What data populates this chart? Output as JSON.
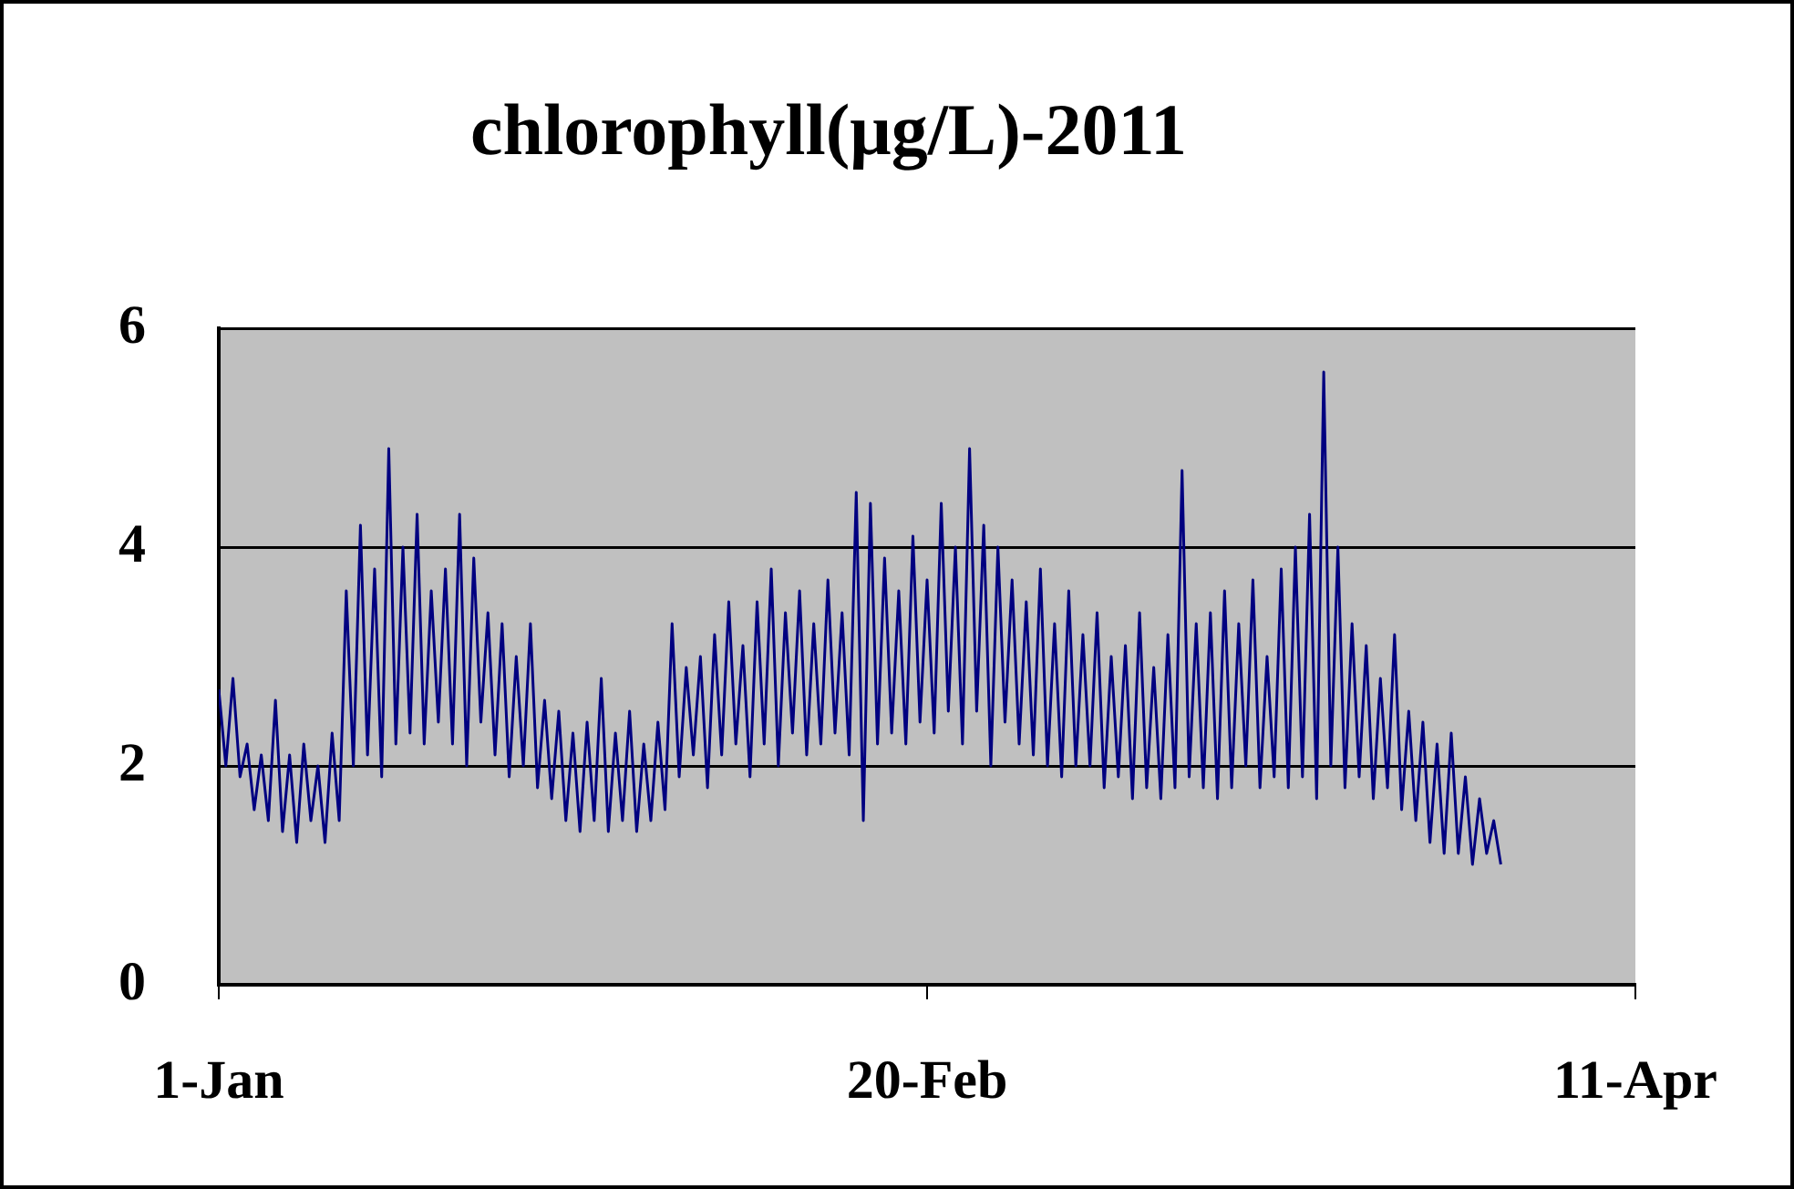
{
  "chart_data": {
    "type": "line",
    "title": "chlorophyll(μg/L)-2011",
    "x": [
      "2011-01-01T00:00",
      "2011-01-01T12:00",
      "2011-01-02T00:00",
      "2011-01-02T12:00",
      "2011-01-03T00:00",
      "2011-01-03T12:00",
      "2011-01-04T00:00",
      "2011-01-04T12:00",
      "2011-01-05T00:00",
      "2011-01-05T12:00",
      "2011-01-06T00:00",
      "2011-01-06T12:00",
      "2011-01-07T00:00",
      "2011-01-07T12:00",
      "2011-01-08T00:00",
      "2011-01-08T12:00",
      "2011-01-09T00:00",
      "2011-01-09T12:00",
      "2011-01-10T00:00",
      "2011-01-10T12:00",
      "2011-01-11T00:00",
      "2011-01-11T12:00",
      "2011-01-12T00:00",
      "2011-01-12T12:00",
      "2011-01-13T00:00",
      "2011-01-13T12:00",
      "2011-01-14T00:00",
      "2011-01-14T12:00",
      "2011-01-15T00:00",
      "2011-01-15T12:00",
      "2011-01-16T00:00",
      "2011-01-16T12:00",
      "2011-01-17T00:00",
      "2011-01-17T12:00",
      "2011-01-18T00:00",
      "2011-01-18T12:00",
      "2011-01-19T00:00",
      "2011-01-19T12:00",
      "2011-01-20T00:00",
      "2011-01-20T12:00",
      "2011-01-21T00:00",
      "2011-01-21T12:00",
      "2011-01-22T00:00",
      "2011-01-22T12:00",
      "2011-01-23T00:00",
      "2011-01-23T12:00",
      "2011-01-24T00:00",
      "2011-01-24T12:00",
      "2011-01-25T00:00",
      "2011-01-25T12:00",
      "2011-01-26T00:00",
      "2011-01-26T12:00",
      "2011-01-27T00:00",
      "2011-01-27T12:00",
      "2011-01-28T00:00",
      "2011-01-28T12:00",
      "2011-01-29T00:00",
      "2011-01-29T12:00",
      "2011-01-30T00:00",
      "2011-01-30T12:00",
      "2011-01-31T00:00",
      "2011-01-31T12:00",
      "2011-02-01T00:00",
      "2011-02-01T12:00",
      "2011-02-02T00:00",
      "2011-02-02T12:00",
      "2011-02-03T00:00",
      "2011-02-03T12:00",
      "2011-02-04T00:00",
      "2011-02-04T12:00",
      "2011-02-05T00:00",
      "2011-02-05T12:00",
      "2011-02-06T00:00",
      "2011-02-06T12:00",
      "2011-02-07T00:00",
      "2011-02-07T12:00",
      "2011-02-08T00:00",
      "2011-02-08T12:00",
      "2011-02-09T00:00",
      "2011-02-09T12:00",
      "2011-02-10T00:00",
      "2011-02-10T12:00",
      "2011-02-11T00:00",
      "2011-02-11T12:00",
      "2011-02-12T00:00",
      "2011-02-12T12:00",
      "2011-02-13T00:00",
      "2011-02-13T12:00",
      "2011-02-14T00:00",
      "2011-02-14T12:00",
      "2011-02-15T00:00",
      "2011-02-15T12:00",
      "2011-02-16T00:00",
      "2011-02-16T12:00",
      "2011-02-17T00:00",
      "2011-02-17T12:00",
      "2011-02-18T00:00",
      "2011-02-18T12:00",
      "2011-02-19T00:00",
      "2011-02-19T12:00",
      "2011-02-20T00:00",
      "2011-02-20T12:00",
      "2011-02-21T00:00",
      "2011-02-21T12:00",
      "2011-02-22T00:00",
      "2011-02-22T12:00",
      "2011-02-23T00:00",
      "2011-02-23T12:00",
      "2011-02-24T00:00",
      "2011-02-24T12:00",
      "2011-02-25T00:00",
      "2011-02-25T12:00",
      "2011-02-26T00:00",
      "2011-02-26T12:00",
      "2011-02-27T00:00",
      "2011-02-27T12:00",
      "2011-02-28T00:00",
      "2011-02-28T12:00",
      "2011-03-01T00:00",
      "2011-03-01T12:00",
      "2011-03-02T00:00",
      "2011-03-02T12:00",
      "2011-03-03T00:00",
      "2011-03-03T12:00",
      "2011-03-04T00:00",
      "2011-03-04T12:00",
      "2011-03-05T00:00",
      "2011-03-05T12:00",
      "2011-03-06T00:00",
      "2011-03-06T12:00",
      "2011-03-07T00:00",
      "2011-03-07T12:00",
      "2011-03-08T00:00",
      "2011-03-08T12:00",
      "2011-03-09T00:00",
      "2011-03-09T12:00",
      "2011-03-10T00:00",
      "2011-03-10T12:00",
      "2011-03-11T00:00",
      "2011-03-11T12:00",
      "2011-03-12T00:00",
      "2011-03-12T12:00",
      "2011-03-13T00:00",
      "2011-03-13T12:00",
      "2011-03-14T00:00",
      "2011-03-14T12:00",
      "2011-03-15T00:00",
      "2011-03-15T12:00",
      "2011-03-16T00:00",
      "2011-03-16T12:00",
      "2011-03-17T00:00",
      "2011-03-17T12:00",
      "2011-03-18T00:00",
      "2011-03-18T12:00",
      "2011-03-19T00:00",
      "2011-03-19T12:00",
      "2011-03-20T00:00",
      "2011-03-20T12:00",
      "2011-03-21T00:00",
      "2011-03-21T12:00",
      "2011-03-22T00:00",
      "2011-03-22T12:00",
      "2011-03-23T00:00",
      "2011-03-23T12:00",
      "2011-03-24T00:00",
      "2011-03-24T12:00",
      "2011-03-25T00:00",
      "2011-03-25T12:00",
      "2011-03-26T00:00",
      "2011-03-26T12:00",
      "2011-03-27T00:00",
      "2011-03-27T12:00",
      "2011-03-28T00:00",
      "2011-03-28T12:00",
      "2011-03-29T00:00",
      "2011-03-29T12:00",
      "2011-03-30T00:00",
      "2011-03-30T12:00",
      "2011-03-31T00:00",
      "2011-03-31T12:00",
      "2011-04-01T00:00",
      "2011-04-01T12:00"
    ],
    "series": [
      {
        "color": "#000080",
        "values": [
          2.7,
          2.0,
          2.8,
          1.9,
          2.2,
          1.6,
          2.1,
          1.5,
          2.6,
          1.4,
          2.1,
          1.3,
          2.2,
          1.5,
          2.0,
          1.3,
          2.3,
          1.5,
          3.6,
          2.0,
          4.2,
          2.1,
          3.8,
          1.9,
          4.9,
          2.2,
          4.0,
          2.3,
          4.3,
          2.2,
          3.6,
          2.4,
          3.8,
          2.2,
          4.3,
          2.0,
          3.9,
          2.4,
          3.4,
          2.1,
          3.3,
          1.9,
          3.0,
          2.0,
          3.3,
          1.8,
          2.6,
          1.7,
          2.5,
          1.5,
          2.3,
          1.4,
          2.4,
          1.5,
          2.8,
          1.4,
          2.3,
          1.5,
          2.5,
          1.4,
          2.2,
          1.5,
          2.4,
          1.6,
          3.3,
          1.9,
          2.9,
          2.1,
          3.0,
          1.8,
          3.2,
          2.1,
          3.5,
          2.2,
          3.1,
          1.9,
          3.5,
          2.2,
          3.8,
          2.0,
          3.4,
          2.3,
          3.6,
          2.1,
          3.3,
          2.2,
          3.7,
          2.3,
          3.4,
          2.1,
          4.5,
          1.5,
          4.4,
          2.2,
          3.9,
          2.3,
          3.6,
          2.2,
          4.1,
          2.4,
          3.7,
          2.3,
          4.4,
          2.5,
          4.0,
          2.2,
          4.9,
          2.5,
          4.2,
          2.0,
          4.0,
          2.4,
          3.7,
          2.2,
          3.5,
          2.1,
          3.8,
          2.0,
          3.3,
          1.9,
          3.6,
          2.0,
          3.2,
          2.0,
          3.4,
          1.8,
          3.0,
          1.9,
          3.1,
          1.7,
          3.4,
          1.8,
          2.9,
          1.7,
          3.2,
          1.8,
          4.7,
          1.9,
          3.3,
          1.8,
          3.4,
          1.7,
          3.6,
          1.8,
          3.3,
          2.0,
          3.7,
          1.8,
          3.0,
          1.9,
          3.8,
          1.8,
          4.0,
          1.9,
          4.3,
          1.7,
          5.6,
          2.0,
          4.0,
          1.8,
          3.3,
          1.9,
          3.1,
          1.7,
          2.8,
          1.8,
          3.2,
          1.6,
          2.5,
          1.5,
          2.4,
          1.3,
          2.2,
          1.2,
          2.3,
          1.2,
          1.9,
          1.1,
          1.7,
          1.2,
          1.5,
          1.1
        ]
      }
    ],
    "xlim": [
      "2011-01-01",
      "2011-04-11"
    ],
    "xticks": [
      {
        "value": "2011-01-01",
        "label": "1-Jan"
      },
      {
        "value": "2011-02-20",
        "label": "20-Feb"
      },
      {
        "value": "2011-04-11",
        "label": "11-Apr"
      }
    ],
    "ylim": [
      0,
      6
    ],
    "yticks": [
      0,
      2,
      4,
      6
    ],
    "grid": "y"
  }
}
